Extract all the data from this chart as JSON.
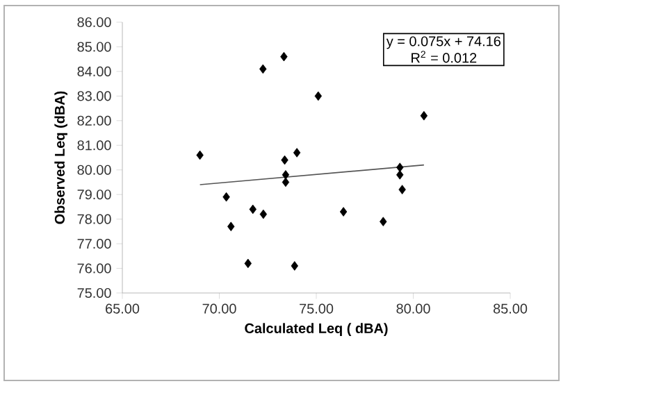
{
  "chart_data": {
    "type": "scatter",
    "xlabel": "Calculated Leq ( dBA)",
    "ylabel": "Observed Leq (dBA)",
    "xlim": [
      65,
      85
    ],
    "ylim": [
      75,
      86
    ],
    "xticks": [
      {
        "value": 65,
        "label": "65.00"
      },
      {
        "value": 70,
        "label": "70.00"
      },
      {
        "value": 75,
        "label": "75.00"
      },
      {
        "value": 80,
        "label": "80.00"
      },
      {
        "value": 85,
        "label": "85.00"
      }
    ],
    "yticks": [
      {
        "value": 75,
        "label": "75.00"
      },
      {
        "value": 76,
        "label": "76.00"
      },
      {
        "value": 77,
        "label": "77.00"
      },
      {
        "value": 78,
        "label": "78.00"
      },
      {
        "value": 79,
        "label": "79.00"
      },
      {
        "value": 80,
        "label": "80.00"
      },
      {
        "value": 81,
        "label": "81.00"
      },
      {
        "value": 82,
        "label": "82.00"
      },
      {
        "value": 83,
        "label": "83.00"
      },
      {
        "value": 84,
        "label": "84.00"
      },
      {
        "value": 85,
        "label": "85.00"
      },
      {
        "value": 86,
        "label": "86.00"
      }
    ],
    "marker": "diamond",
    "series": [
      {
        "color": "#000000",
        "x": [
          69.0,
          72.25,
          73.33,
          75.1,
          74.0,
          73.37,
          73.42,
          73.42,
          70.36,
          71.73,
          72.27,
          70.6,
          71.48,
          73.88,
          80.55,
          79.31,
          79.31,
          79.43,
          76.4,
          78.45
        ],
        "values": [
          80.6,
          84.1,
          84.6,
          83.0,
          80.7,
          80.4,
          79.8,
          79.5,
          78.9,
          78.4,
          78.2,
          77.7,
          76.2,
          76.1,
          82.2,
          80.1,
          79.8,
          79.2,
          78.3,
          77.9
        ]
      },
      {
        "type": "line",
        "marker": "none",
        "color": "#555555",
        "x": [
          69.0,
          80.55
        ],
        "values": [
          79.4,
          80.2
        ]
      }
    ],
    "annotations": [
      "y = 0.075x + 74.16",
      "R$^{2}$ = 0.012"
    ]
  }
}
